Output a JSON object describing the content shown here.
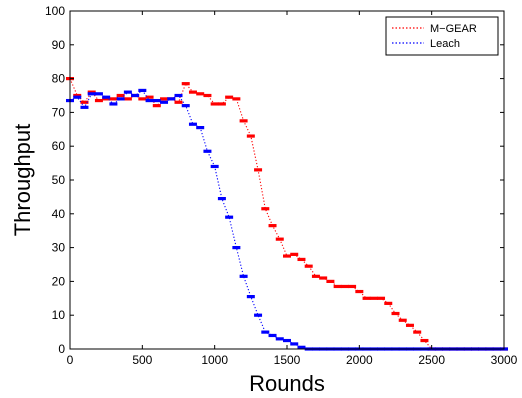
{
  "chart_data": {
    "type": "line",
    "xlabel": "Rounds",
    "ylabel": "Throughput",
    "xlim": [
      0,
      3000
    ],
    "ylim": [
      0,
      100
    ],
    "xticks": [
      0,
      500,
      1000,
      1500,
      2000,
      2500,
      3000
    ],
    "yticks": [
      0,
      10,
      20,
      30,
      40,
      50,
      60,
      70,
      80,
      90,
      100
    ],
    "grid": false,
    "legend_position": "top-right",
    "series": [
      {
        "name": "M−GEAR",
        "color": "#ff0000",
        "line_style": "dotted",
        "marker": "dash",
        "points": [
          [
            0,
            80
          ],
          [
            50,
            75
          ],
          [
            100,
            73
          ],
          [
            150,
            76
          ],
          [
            200,
            73.5
          ],
          [
            250,
            74
          ],
          [
            300,
            74
          ],
          [
            350,
            75
          ],
          [
            400,
            74
          ],
          [
            450,
            75
          ],
          [
            500,
            74
          ],
          [
            550,
            74.5
          ],
          [
            600,
            72
          ],
          [
            650,
            74
          ],
          [
            700,
            74
          ],
          [
            750,
            73
          ],
          [
            800,
            78.5
          ],
          [
            850,
            76
          ],
          [
            900,
            75.5
          ],
          [
            950,
            75
          ],
          [
            1000,
            72.5
          ],
          [
            1050,
            72.5
          ],
          [
            1100,
            74.5
          ],
          [
            1150,
            74
          ],
          [
            1200,
            67.5
          ],
          [
            1250,
            63
          ],
          [
            1300,
            53
          ],
          [
            1350,
            41.5
          ],
          [
            1400,
            36.5
          ],
          [
            1450,
            32.5
          ],
          [
            1500,
            27.5
          ],
          [
            1550,
            28
          ],
          [
            1600,
            26.5
          ],
          [
            1650,
            24.5
          ],
          [
            1700,
            21.5
          ],
          [
            1750,
            21
          ],
          [
            1800,
            20
          ],
          [
            1850,
            18.5
          ],
          [
            1900,
            18.5
          ],
          [
            1950,
            18.5
          ],
          [
            2000,
            17
          ],
          [
            2050,
            15
          ],
          [
            2100,
            15
          ],
          [
            2150,
            15
          ],
          [
            2200,
            13.5
          ],
          [
            2250,
            10.5
          ],
          [
            2300,
            8.5
          ],
          [
            2350,
            7
          ],
          [
            2400,
            5
          ],
          [
            2450,
            2.5
          ],
          [
            2500,
            0
          ],
          [
            2550,
            0
          ],
          [
            2600,
            0
          ],
          [
            2650,
            0
          ],
          [
            2700,
            0
          ],
          [
            2750,
            0
          ],
          [
            2800,
            0
          ],
          [
            2850,
            0
          ],
          [
            2900,
            0
          ],
          [
            2950,
            0
          ],
          [
            3000,
            0
          ]
        ]
      },
      {
        "name": "Leach",
        "color": "#0000ff",
        "line_style": "dotted",
        "marker": "dash",
        "points": [
          [
            0,
            73.5
          ],
          [
            50,
            74.5
          ],
          [
            100,
            71.5
          ],
          [
            150,
            75.5
          ],
          [
            200,
            75.5
          ],
          [
            250,
            74.5
          ],
          [
            300,
            72.5
          ],
          [
            350,
            74
          ],
          [
            400,
            76
          ],
          [
            450,
            75
          ],
          [
            500,
            76.5
          ],
          [
            550,
            73.5
          ],
          [
            600,
            73.5
          ],
          [
            650,
            73
          ],
          [
            700,
            74
          ],
          [
            750,
            75
          ],
          [
            800,
            72
          ],
          [
            850,
            66.5
          ],
          [
            900,
            65.5
          ],
          [
            950,
            58.5
          ],
          [
            1000,
            54
          ],
          [
            1050,
            44.5
          ],
          [
            1100,
            39
          ],
          [
            1150,
            30
          ],
          [
            1200,
            21.5
          ],
          [
            1250,
            15.5
          ],
          [
            1300,
            10
          ],
          [
            1350,
            5
          ],
          [
            1400,
            4
          ],
          [
            1450,
            3
          ],
          [
            1500,
            2.5
          ],
          [
            1550,
            1.5
          ],
          [
            1600,
            0.5
          ],
          [
            1650,
            0
          ],
          [
            1700,
            0
          ],
          [
            1750,
            0
          ],
          [
            1800,
            0
          ],
          [
            1850,
            0
          ],
          [
            1900,
            0
          ],
          [
            1950,
            0
          ],
          [
            2000,
            0
          ],
          [
            2050,
            0
          ],
          [
            2100,
            0
          ],
          [
            2150,
            0
          ],
          [
            2200,
            0
          ],
          [
            2250,
            0
          ],
          [
            2300,
            0
          ],
          [
            2350,
            0
          ],
          [
            2400,
            0
          ],
          [
            2450,
            0
          ],
          [
            2500,
            0
          ],
          [
            2550,
            0
          ],
          [
            2600,
            0
          ],
          [
            2650,
            0
          ],
          [
            2700,
            0
          ],
          [
            2750,
            0
          ],
          [
            2800,
            0
          ],
          [
            2850,
            0
          ],
          [
            2900,
            0
          ],
          [
            2950,
            0
          ],
          [
            3000,
            0
          ]
        ]
      }
    ]
  }
}
